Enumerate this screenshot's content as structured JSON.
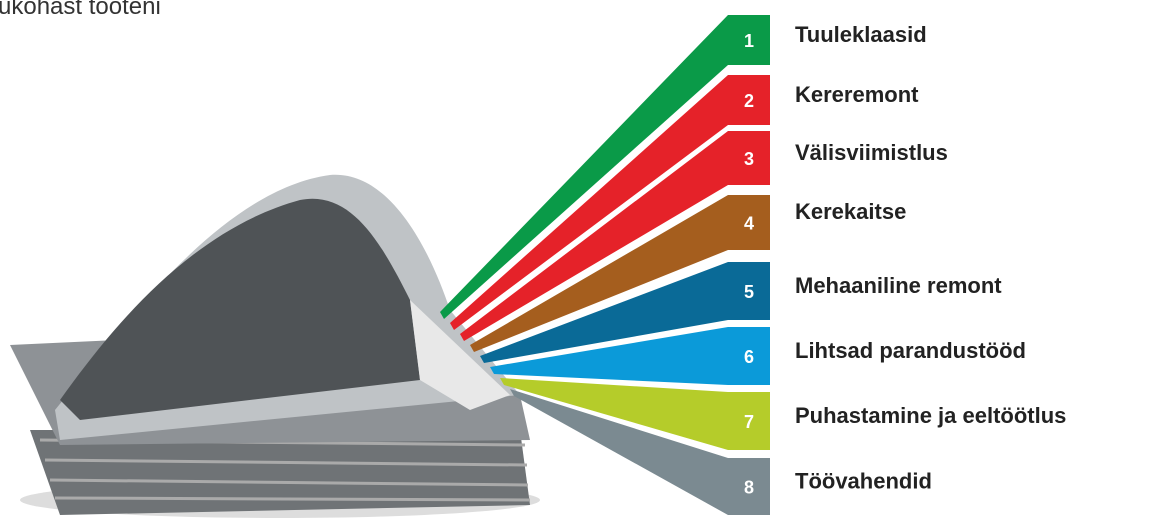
{
  "header": {
    "title": "ukohast tooteni"
  },
  "items": [
    {
      "number": "1",
      "label": "Tuuleklaasid",
      "color": "#0a9a48"
    },
    {
      "number": "2",
      "label": "Kereremont",
      "color": "#e52229"
    },
    {
      "number": "3",
      "label": "Välisviimistlus",
      "color": "#e52229"
    },
    {
      "number": "4",
      "label": "Kerekaitse",
      "color": "#a55e1e"
    },
    {
      "number": "5",
      "label": "Mehaaniline remont",
      "color": "#0a6a97"
    },
    {
      "number": "6",
      "label": "Lihtsad parandustööd",
      "color": "#0b9ad9"
    },
    {
      "number": "7",
      "label": "Puhastamine ja eeltöötlus",
      "color": "#b5cc2a"
    },
    {
      "number": "8",
      "label": "Töövahendid",
      "color": "#7b8a91"
    }
  ]
}
